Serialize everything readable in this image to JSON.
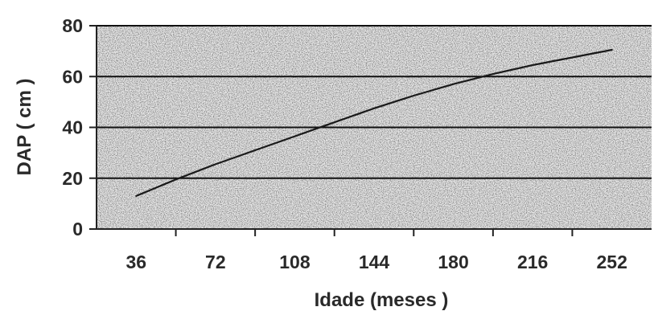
{
  "chart_data": {
    "type": "line",
    "title": "",
    "xlabel": "Idade (meses )",
    "ylabel": "DAP ( cm )",
    "x_ticks": [
      "36",
      "72",
      "108",
      "144",
      "180",
      "216",
      "252"
    ],
    "y_ticks": [
      "0",
      "20",
      "40",
      "60",
      "80"
    ],
    "xlim": [
      18,
      270
    ],
    "ylim": [
      0,
      80
    ],
    "grid": "horizontal",
    "legend": "none",
    "series": [
      {
        "x": [
          36,
          54,
          72,
          90,
          108,
          126,
          144,
          162,
          180,
          198,
          216,
          234,
          252
        ],
        "y": [
          13,
          19.5,
          25.5,
          31,
          36.5,
          42,
          47.5,
          52.5,
          57,
          61,
          64.5,
          67.5,
          70.5
        ],
        "color": "#1a1a1a"
      }
    ],
    "colors": {
      "plot_background": "#e9e9e9",
      "gridline": "#111111",
      "line": "#1a1a1a",
      "axis": "#222222"
    }
  }
}
